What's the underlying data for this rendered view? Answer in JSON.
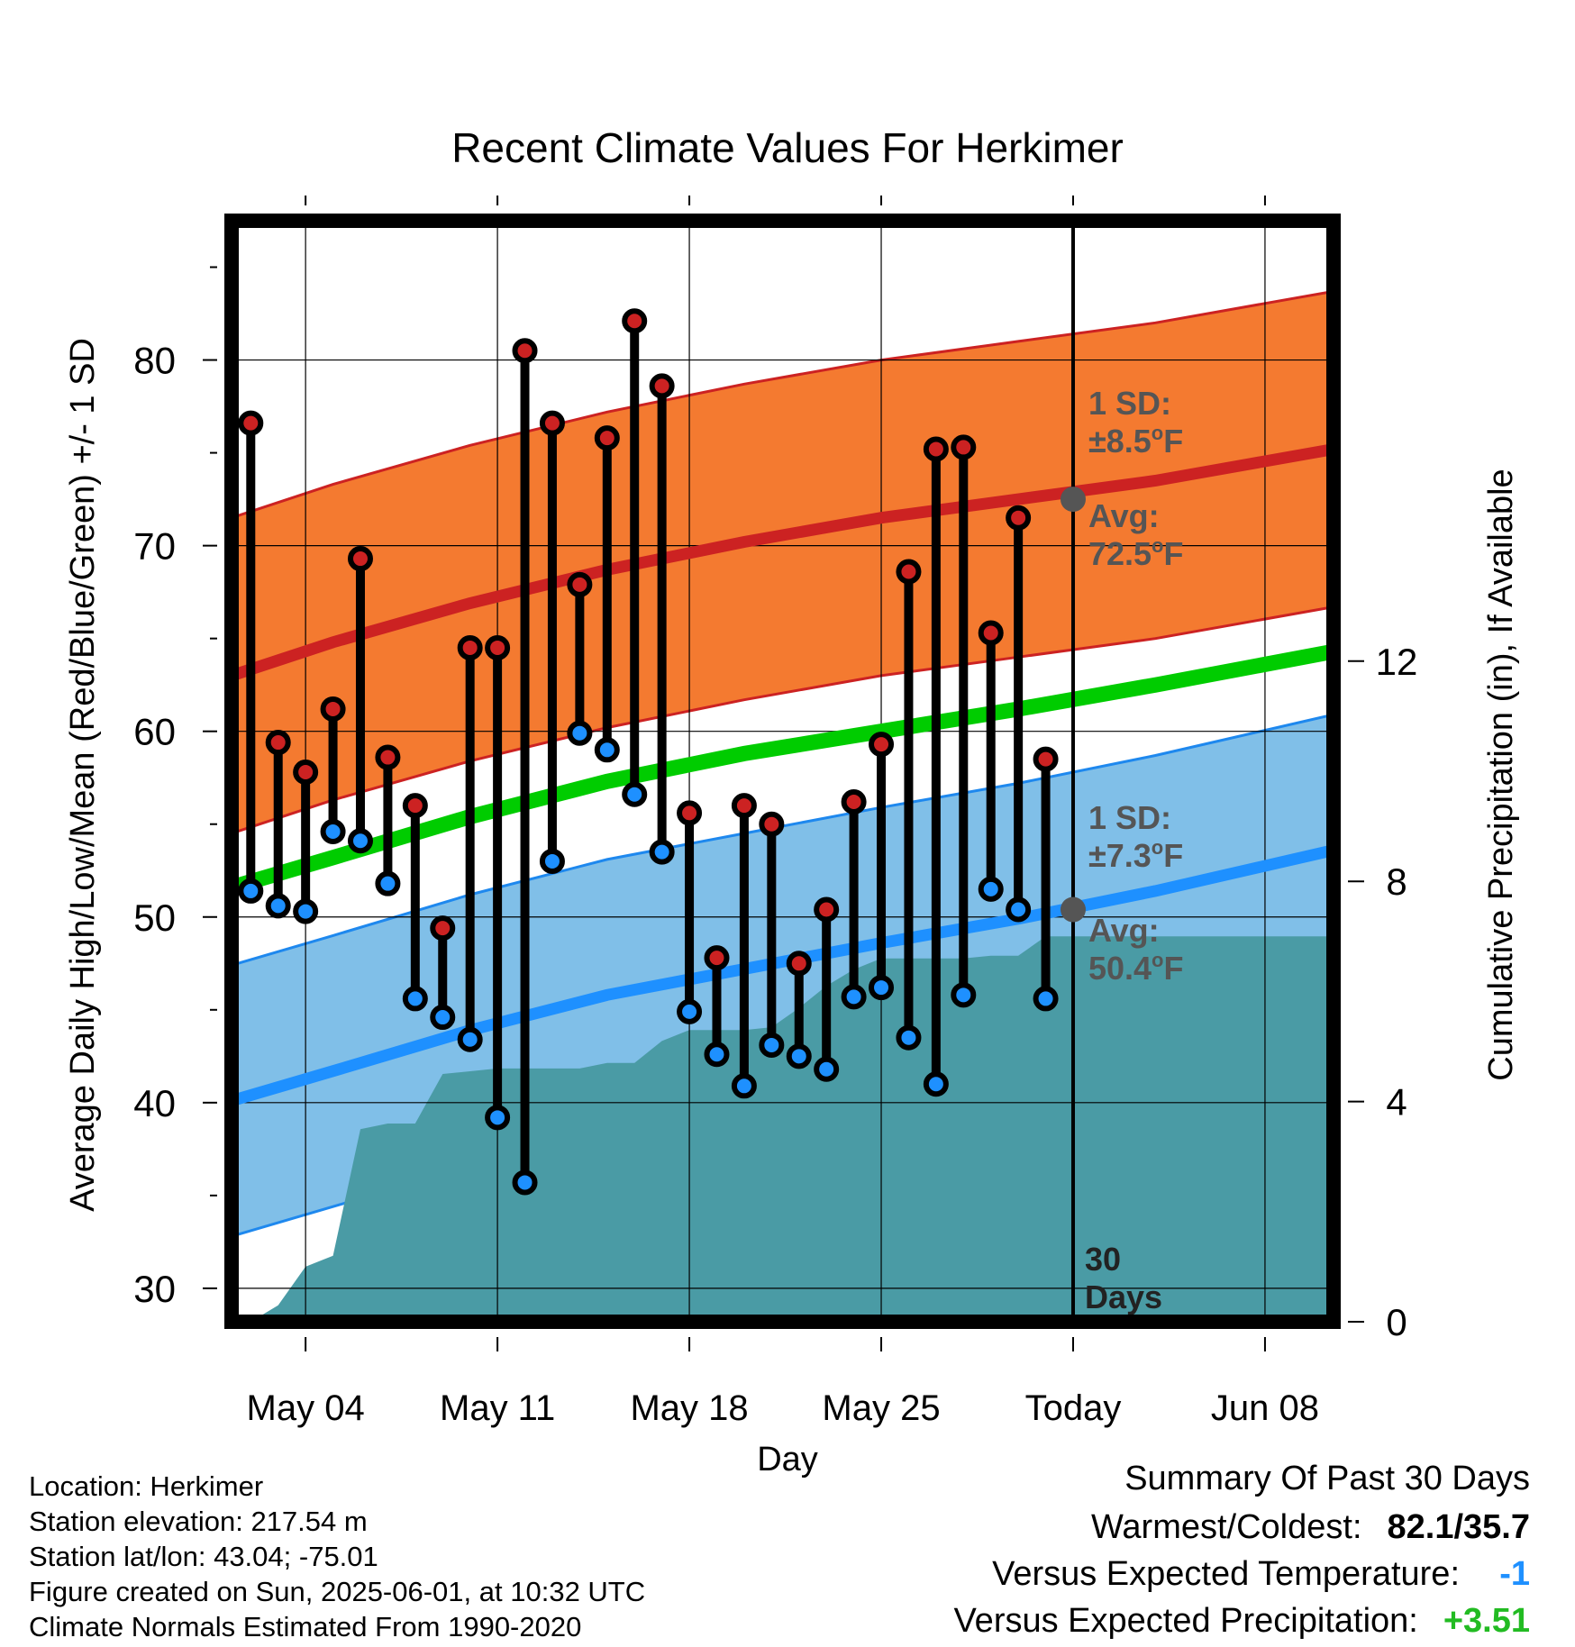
{
  "chart_data": {
    "type": "line",
    "title": "Recent Climate Values For Herkimer",
    "xlabel": "Day",
    "ylabel": "Average Daily High/Low/Mean (Red/Blue/Green) +/- 1 SD",
    "y2label": "Cumulative Precipitation (in), If Available",
    "ylim": [
      28.2,
      87.5
    ],
    "y2lim": [
      0,
      20
    ],
    "y_ticks": [
      30,
      40,
      50,
      60,
      70,
      80
    ],
    "y_tick_labels": [
      "30",
      "40",
      "50",
      "60",
      "70",
      "80"
    ],
    "y2_ticks": [
      0,
      4,
      8,
      12
    ],
    "y2_tick_labels": [
      "0",
      "4",
      "8",
      "12"
    ],
    "x_ticks": [
      4,
      11,
      18,
      25,
      32,
      39
    ],
    "x_tick_labels": [
      "May 04",
      "May 11",
      "May 18",
      "May 25",
      "Today",
      "Jun 08"
    ],
    "xlim": [
      1.3,
      41.5
    ],
    "today_x": 32,
    "grid": true,
    "daily": {
      "x": [
        2,
        3,
        4,
        5,
        6,
        7,
        8,
        9,
        10,
        11,
        12,
        13,
        14,
        15,
        16,
        17,
        18,
        19,
        20,
        21,
        22,
        23,
        24,
        25,
        26,
        27,
        28,
        29,
        30,
        31
      ],
      "highs": [
        76.6,
        59.4,
        57.8,
        61.2,
        69.3,
        58.6,
        56.0,
        49.4,
        64.5,
        64.5,
        80.5,
        76.6,
        67.9,
        75.8,
        82.1,
        78.6,
        55.6,
        47.8,
        56.0,
        55.0,
        47.5,
        50.4,
        56.2,
        59.3,
        68.6,
        75.2,
        75.3,
        65.3,
        71.5,
        58.5
      ],
      "lows": [
        51.4,
        50.6,
        50.3,
        54.6,
        54.1,
        51.8,
        45.6,
        44.6,
        43.4,
        39.2,
        35.7,
        53.0,
        59.9,
        59.0,
        56.6,
        53.5,
        44.9,
        42.6,
        40.9,
        43.1,
        42.5,
        41.8,
        45.7,
        46.2,
        43.5,
        41.0,
        45.8,
        51.5,
        50.4,
        45.6
      ]
    },
    "normal_high": {
      "x": [
        1.3,
        5,
        10,
        15,
        20,
        25,
        30,
        35,
        41.5
      ],
      "mean": [
        63.0,
        64.8,
        66.9,
        68.7,
        70.2,
        71.5,
        72.5,
        73.5,
        75.2
      ]
    },
    "normal_high_sd": 8.5,
    "normal_low": {
      "x": [
        1.3,
        5,
        10,
        15,
        20,
        25,
        30,
        35,
        41.5
      ],
      "mean": [
        40.1,
        41.7,
        43.9,
        45.8,
        47.2,
        48.6,
        49.9,
        51.4,
        53.6
      ]
    },
    "normal_low_sd": 7.3,
    "normal_mean": {
      "x": [
        1.3,
        5,
        10,
        15,
        20,
        25,
        30,
        35,
        41.5
      ],
      "mean": [
        51.6,
        53.2,
        55.4,
        57.3,
        58.8,
        60.0,
        61.2,
        62.5,
        64.3
      ]
    },
    "precip_cumulative": {
      "x": [
        2,
        3,
        4,
        5,
        6,
        7,
        8,
        9,
        10,
        11,
        12,
        13,
        14,
        15,
        16,
        17,
        18,
        19,
        20,
        21,
        22,
        23,
        24,
        25,
        26,
        27,
        28,
        29,
        30,
        31,
        32,
        41.5
      ],
      "values": [
        0,
        0.3,
        1.0,
        1.2,
        3.5,
        3.6,
        3.6,
        4.5,
        4.55,
        4.6,
        4.6,
        4.6,
        4.6,
        4.7,
        4.7,
        5.1,
        5.3,
        5.3,
        5.3,
        5.35,
        5.7,
        6.1,
        6.4,
        6.6,
        6.6,
        6.6,
        6.6,
        6.65,
        6.65,
        7.0,
        7.0,
        7.0
      ]
    },
    "annotations": {
      "high_sd_l1": "1 SD:",
      "high_sd_l2": "±8.5",
      "high_avg_l1": "Avg:",
      "high_avg_l2": "72.5",
      "low_sd_l1": "1 SD:",
      "low_sd_l2": "±7.3",
      "low_avg_l1": "Avg:",
      "low_avg_l2": "50.4",
      "unit": "F",
      "degree": "o",
      "days_l1": "30",
      "days_l2": "Days"
    },
    "colors": {
      "high_band": "#f47a30",
      "high_line": "#cc2222",
      "low_band": "#80bfe8",
      "low_line": "#1e90ff",
      "low_edge": "#1e88ee",
      "mean_line": "#00cc00",
      "precip": "#4a9ba5",
      "high_dot": "#cc2222",
      "low_dot": "#1e90ff",
      "marker": "#555555",
      "annotation": "#555555"
    }
  },
  "info": {
    "location": "Location: Herkimer",
    "elevation": "Station elevation: 217.54 m",
    "latlon": "Station lat/lon: 43.04; -75.01",
    "created": "Figure created on Sun, 2025-06-01, at 10:32 UTC",
    "normals": "Climate Normals Estimated From 1990-2020"
  },
  "summary": {
    "title": "Summary Of Past 30 Days",
    "warm_label": "Warmest/Coldest:",
    "warm_value": "82.1/35.7",
    "temp_label": "Versus Expected Temperature:",
    "temp_value": "-1",
    "temp_color": "#1e90ff",
    "precip_label": "Versus Expected Precipitation:",
    "precip_value": "+3.51",
    "precip_color": "#22bb22"
  }
}
